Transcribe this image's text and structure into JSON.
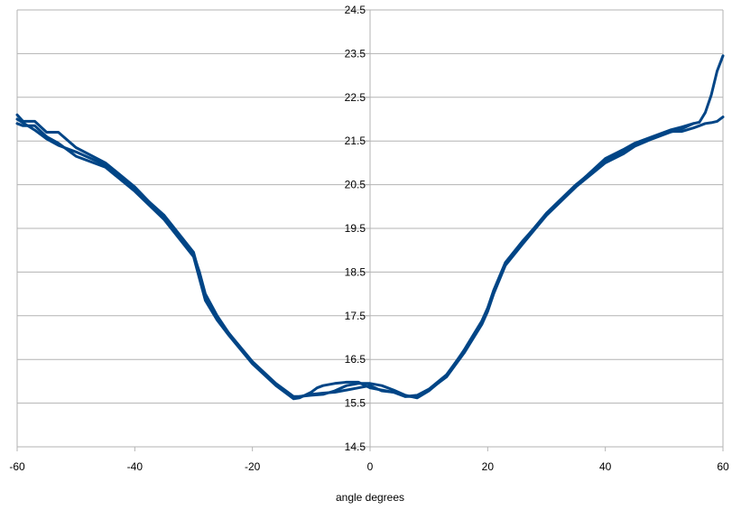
{
  "chart_data": {
    "type": "line",
    "title": "",
    "xlabel": "angle degrees",
    "ylabel": "",
    "xlim": [
      -60,
      60
    ],
    "ylim": [
      14.5,
      24.5
    ],
    "xticks": [
      -60,
      -40,
      -20,
      0,
      20,
      40,
      60
    ],
    "yticks": [
      14.5,
      15.5,
      16.5,
      17.5,
      18.5,
      19.5,
      20.5,
      21.5,
      22.5,
      23.5,
      24.5
    ],
    "xtick_labels": [
      "-60",
      "-40",
      "-20",
      "0",
      "20",
      "40",
      "60"
    ],
    "ytick_labels": [
      "14.5",
      "15.5",
      "16.5",
      "17.5",
      "18.5",
      "19.5",
      "20.5",
      "21.5",
      "22.5",
      "23.5",
      "24.5"
    ],
    "grid": "horizontal",
    "legend": "none",
    "line_color": "#004586",
    "series": [
      {
        "x": [
          -60,
          -59,
          -57,
          -55,
          -53,
          -50,
          -45,
          -40,
          -35,
          -30,
          -29,
          -28,
          -26,
          -24,
          -20,
          -16,
          -14,
          -13,
          -12,
          -10,
          -8,
          -6,
          -4,
          -2,
          0,
          2,
          4,
          6,
          8,
          10,
          13,
          16,
          19,
          20,
          21,
          23,
          26,
          30,
          35,
          40,
          43,
          45,
          48,
          51,
          53,
          55,
          56,
          57,
          58,
          59,
          60
        ],
        "y": [
          22.1,
          21.95,
          21.95,
          21.7,
          21.7,
          21.35,
          21.0,
          20.45,
          19.75,
          18.9,
          18.5,
          18.0,
          17.5,
          17.1,
          16.45,
          15.95,
          15.75,
          15.65,
          15.65,
          15.7,
          15.73,
          15.75,
          15.8,
          15.85,
          15.9,
          15.78,
          15.75,
          15.65,
          15.65,
          15.8,
          16.1,
          16.65,
          17.3,
          17.6,
          18.0,
          18.65,
          19.15,
          19.8,
          20.45,
          21.0,
          21.2,
          21.38,
          21.55,
          21.7,
          21.78,
          21.9,
          21.93,
          22.15,
          22.55,
          23.1,
          23.45
        ]
      },
      {
        "x": [
          -60,
          -59,
          -57,
          -55,
          -53,
          -50,
          -45,
          -40,
          -35,
          -30,
          -29,
          -28,
          -26,
          -24,
          -20,
          -16,
          -14,
          -13,
          -12,
          -10,
          -9,
          -8,
          -6,
          -4,
          -2,
          0,
          2,
          4,
          6,
          8,
          10,
          13,
          16,
          19,
          20,
          21,
          23,
          26,
          30,
          35,
          40,
          43,
          45,
          48,
          51,
          53,
          55,
          56,
          57,
          58,
          59,
          60
        ],
        "y": [
          21.9,
          21.85,
          21.85,
          21.6,
          21.45,
          21.15,
          20.9,
          20.35,
          19.7,
          18.85,
          18.35,
          17.85,
          17.4,
          17.05,
          16.4,
          15.9,
          15.7,
          15.6,
          15.62,
          15.75,
          15.85,
          15.9,
          15.95,
          15.98,
          15.98,
          15.85,
          15.8,
          15.75,
          15.65,
          15.68,
          15.82,
          16.15,
          16.7,
          17.35,
          17.65,
          18.05,
          18.7,
          19.2,
          19.85,
          20.5,
          21.05,
          21.25,
          21.42,
          21.58,
          21.72,
          21.72,
          21.8,
          21.85,
          21.9,
          21.92,
          21.95,
          22.05
        ]
      },
      {
        "x": [
          -60,
          -57,
          -55,
          -53,
          -50,
          -45,
          -40,
          -35,
          -30,
          -29,
          -28,
          -26,
          -24,
          -20,
          -16,
          -14,
          -13,
          -12,
          -10,
          -8,
          -6,
          -4,
          -2,
          0,
          2,
          4,
          6,
          8,
          10,
          13,
          16,
          19,
          20,
          21,
          23,
          26,
          30,
          35,
          40,
          43,
          45,
          48,
          51,
          53,
          55
        ],
        "y": [
          22.0,
          21.75,
          21.55,
          21.4,
          21.25,
          20.95,
          20.4,
          19.8,
          18.95,
          18.45,
          17.95,
          17.45,
          17.1,
          16.42,
          15.92,
          15.72,
          15.62,
          15.65,
          15.68,
          15.7,
          15.78,
          15.9,
          15.95,
          15.95,
          15.9,
          15.8,
          15.68,
          15.62,
          15.78,
          16.12,
          16.72,
          17.38,
          17.68,
          18.08,
          18.72,
          19.22,
          19.82,
          20.48,
          21.1,
          21.3,
          21.45,
          21.6,
          21.75,
          21.82,
          21.9
        ]
      }
    ]
  }
}
